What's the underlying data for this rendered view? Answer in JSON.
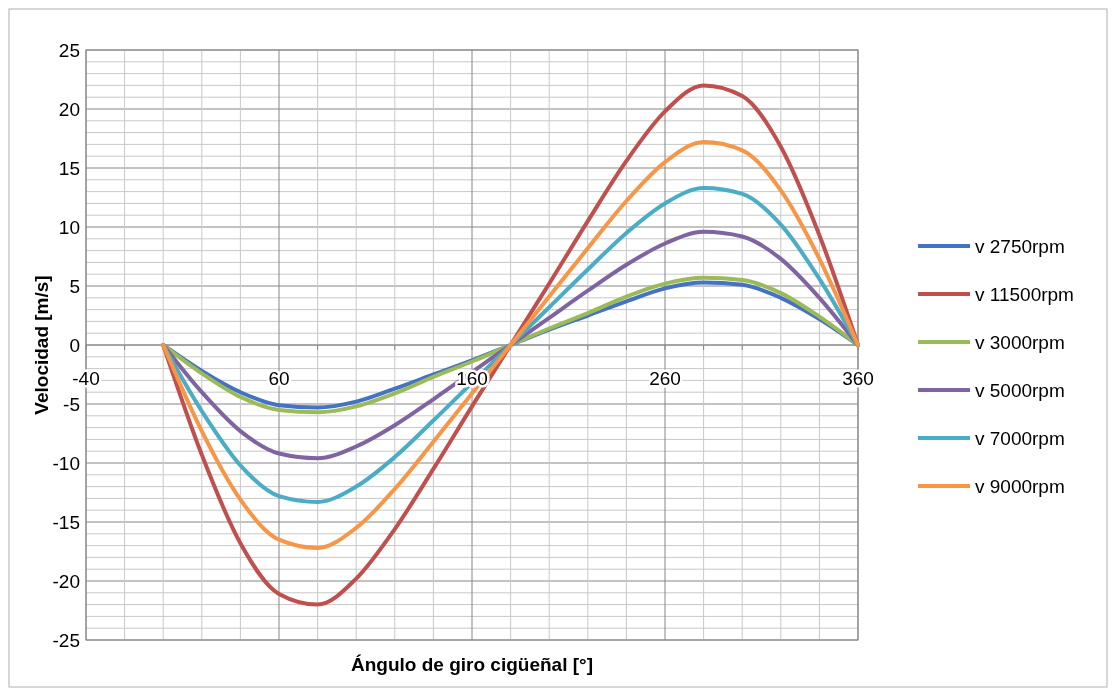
{
  "chart_data": {
    "type": "line",
    "xlabel": "Ángulo de giro cigüeñal [°]",
    "ylabel": "Velocidad [m/s]",
    "x": [
      0,
      20,
      40,
      60,
      80,
      100,
      120,
      140,
      160,
      180,
      200,
      220,
      240,
      260,
      280,
      300,
      320,
      340,
      360
    ],
    "xlim": [
      -40,
      360
    ],
    "xticks": [
      -40,
      {
        "value": -20,
        "label": null
      },
      {
        "value": 0,
        "label": null
      },
      {
        "value": 20,
        "label": null
      },
      {
        "value": 40,
        "label": null
      },
      60,
      {
        "value": 80,
        "label": null
      },
      {
        "value": 100,
        "label": null
      },
      {
        "value": 120,
        "label": null
      },
      {
        "value": 140,
        "label": null
      },
      160,
      {
        "value": 180,
        "label": null
      },
      {
        "value": 200,
        "label": null
      },
      {
        "value": 220,
        "label": null
      },
      {
        "value": 240,
        "label": null
      },
      260,
      {
        "value": 280,
        "label": null
      },
      {
        "value": 300,
        "label": null
      },
      {
        "value": 320,
        "label": null
      },
      {
        "value": 340,
        "label": null
      },
      360
    ],
    "ylim": [
      -25,
      25
    ],
    "yticks": [
      -25,
      {
        "value": -24,
        "label": null
      },
      {
        "value": -23,
        "label": null
      },
      {
        "value": -22,
        "label": null
      },
      {
        "value": -21,
        "label": null
      },
      -20,
      {
        "value": -19,
        "label": null
      },
      {
        "value": -18,
        "label": null
      },
      {
        "value": -17,
        "label": null
      },
      {
        "value": -16,
        "label": null
      },
      -15,
      {
        "value": -14,
        "label": null
      },
      {
        "value": -13,
        "label": null
      },
      {
        "value": -12,
        "label": null
      },
      {
        "value": -11,
        "label": null
      },
      -10,
      {
        "value": -9,
        "label": null
      },
      {
        "value": -8,
        "label": null
      },
      {
        "value": -7,
        "label": null
      },
      {
        "value": -6,
        "label": null
      },
      -5,
      {
        "value": -4,
        "label": null
      },
      {
        "value": -3,
        "label": null
      },
      {
        "value": -2,
        "label": null
      },
      {
        "value": -1,
        "label": null
      },
      0,
      {
        "value": 1,
        "label": null
      },
      {
        "value": 2,
        "label": null
      },
      {
        "value": 3,
        "label": null
      },
      {
        "value": 4,
        "label": null
      },
      5,
      {
        "value": 6,
        "label": null
      },
      {
        "value": 7,
        "label": null
      },
      {
        "value": 8,
        "label": null
      },
      {
        "value": 9,
        "label": null
      },
      10,
      {
        "value": 11,
        "label": null
      },
      {
        "value": 12,
        "label": null
      },
      {
        "value": 13,
        "label": null
      },
      {
        "value": 14,
        "label": null
      },
      15,
      {
        "value": 16,
        "label": null
      },
      {
        "value": 17,
        "label": null
      },
      {
        "value": 18,
        "label": null
      },
      {
        "value": 19,
        "label": null
      },
      20,
      {
        "value": 21,
        "label": null
      },
      {
        "value": 22,
        "label": null
      },
      {
        "value": 23,
        "label": null
      },
      {
        "value": 24,
        "label": null
      },
      25
    ],
    "grid": true,
    "legend": "right",
    "marker": "none",
    "line_style": "solid",
    "series": [
      {
        "name": "v 2750rpm",
        "color": "#4472c4",
        "values": [
          0,
          -2.2,
          -4.0,
          -5.1,
          -5.3,
          -4.8,
          -3.7,
          -2.5,
          -1.3,
          0,
          1.3,
          2.5,
          3.7,
          4.8,
          5.3,
          5.1,
          4.0,
          2.2,
          0
        ]
      },
      {
        "name": "v 11500rpm",
        "color": "#c0504d",
        "values": [
          0,
          -9.3,
          -16.8,
          -21.1,
          -22.0,
          -19.8,
          -15.6,
          -10.5,
          -5.2,
          0,
          5.2,
          10.5,
          15.6,
          19.8,
          22.0,
          21.1,
          16.8,
          9.3,
          0
        ]
      },
      {
        "name": "v 3000rpm",
        "color": "#9bbb59",
        "values": [
          0,
          -2.4,
          -4.4,
          -5.5,
          -5.7,
          -5.2,
          -4.1,
          -2.7,
          -1.4,
          0,
          1.4,
          2.7,
          4.1,
          5.2,
          5.7,
          5.5,
          4.4,
          2.4,
          0
        ]
      },
      {
        "name": "v 5000rpm",
        "color": "#8064a2",
        "values": [
          0,
          -4.0,
          -7.3,
          -9.2,
          -9.6,
          -8.6,
          -6.8,
          -4.6,
          -2.3,
          0,
          2.3,
          4.6,
          6.8,
          8.6,
          9.6,
          9.2,
          7.3,
          4.0,
          0
        ]
      },
      {
        "name": "v 7000rpm",
        "color": "#4bacc6",
        "values": [
          0,
          -5.6,
          -10.2,
          -12.8,
          -13.3,
          -12.0,
          -9.5,
          -6.4,
          -3.2,
          0,
          3.2,
          6.4,
          9.5,
          12.0,
          13.3,
          12.8,
          10.2,
          5.6,
          0
        ]
      },
      {
        "name": "v 9000rpm",
        "color": "#f79646",
        "values": [
          0,
          -7.3,
          -13.1,
          -16.5,
          -17.2,
          -15.5,
          -12.2,
          -8.2,
          -4.1,
          0,
          4.1,
          8.2,
          12.2,
          15.5,
          17.2,
          16.5,
          13.1,
          7.3,
          0
        ]
      }
    ]
  }
}
